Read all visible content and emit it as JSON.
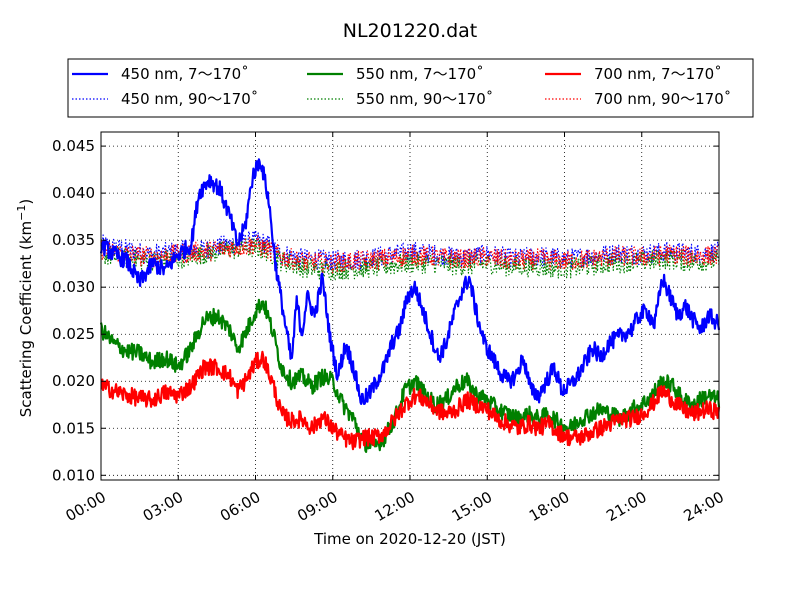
{
  "chart_data": {
    "type": "line",
    "title": "NL201220.dat",
    "xlabel": "Time on 2020-12-20 (JST)",
    "ylabel": "Scattering Coefficient (km",
    "ylabel_sup": "−1",
    "ylabel_close": ")",
    "xlim": [
      0,
      24
    ],
    "ylim": [
      0.0095,
      0.0465
    ],
    "x_ticks": [
      0,
      3,
      6,
      9,
      12,
      15,
      18,
      21,
      24
    ],
    "x_tick_labels": [
      "00:00",
      "03:00",
      "06:00",
      "09:00",
      "12:00",
      "15:00",
      "18:00",
      "21:00",
      "24:00"
    ],
    "y_ticks": [
      0.01,
      0.015,
      0.02,
      0.025,
      0.03,
      0.035,
      0.04,
      0.045
    ],
    "y_tick_labels": [
      "0.010",
      "0.015",
      "0.020",
      "0.025",
      "0.030",
      "0.035",
      "0.040",
      "0.045"
    ],
    "grid": true,
    "legend_position": "top",
    "x_unit": "hours",
    "series": [
      {
        "name": "450 nm, 7～170˚",
        "color": "#0000ff",
        "style": "solid",
        "x": [
          0,
          0.5,
          1,
          1.5,
          2,
          2.5,
          3,
          3.5,
          3.8,
          4.2,
          4.6,
          5,
          5.3,
          5.6,
          5.9,
          6.2,
          6.5,
          6.8,
          7.1,
          7.4,
          7.6,
          7.8,
          8.0,
          8.3,
          8.6,
          8.9,
          9.2,
          9.5,
          9.8,
          10.1,
          10.4,
          10.7,
          11.0,
          11.3,
          11.6,
          11.9,
          12.2,
          12.5,
          12.8,
          13.1,
          13.4,
          13.7,
          14.0,
          14.3,
          14.6,
          14.9,
          15.2,
          15.5,
          15.8,
          16.1,
          16.4,
          16.7,
          17.0,
          17.3,
          17.6,
          17.9,
          18.2,
          18.5,
          18.8,
          19.1,
          19.4,
          19.7,
          20.0,
          20.3,
          20.6,
          20.9,
          21.2,
          21.5,
          21.8,
          22.1,
          22.4,
          22.7,
          23.0,
          23.3,
          23.6,
          24.0
        ],
        "values": [
          0.0345,
          0.0335,
          0.0328,
          0.0305,
          0.0325,
          0.0318,
          0.0335,
          0.0345,
          0.04,
          0.0415,
          0.0405,
          0.0375,
          0.0345,
          0.0365,
          0.042,
          0.0435,
          0.0395,
          0.032,
          0.027,
          0.022,
          0.0285,
          0.025,
          0.029,
          0.027,
          0.031,
          0.0245,
          0.0205,
          0.024,
          0.0215,
          0.018,
          0.0185,
          0.02,
          0.0215,
          0.024,
          0.0255,
          0.029,
          0.03,
          0.0275,
          0.025,
          0.0225,
          0.024,
          0.027,
          0.0295,
          0.031,
          0.027,
          0.024,
          0.0225,
          0.021,
          0.02,
          0.0205,
          0.0225,
          0.019,
          0.0185,
          0.02,
          0.0215,
          0.019,
          0.0195,
          0.0205,
          0.022,
          0.0235,
          0.0225,
          0.024,
          0.0245,
          0.025,
          0.0255,
          0.027,
          0.0275,
          0.026,
          0.031,
          0.029,
          0.027,
          0.028,
          0.0265,
          0.0255,
          0.027,
          0.026
        ]
      },
      {
        "name": "450 nm, 90～170˚",
        "color": "#0000ff",
        "style": "dotted",
        "x": [
          0,
          1,
          2,
          3,
          4,
          5,
          6,
          6.5,
          7,
          8,
          9,
          10,
          11,
          12,
          13,
          14,
          15,
          16,
          17,
          18,
          19,
          20,
          21,
          22,
          23,
          24
        ],
        "values": [
          0.0345,
          0.034,
          0.0335,
          0.0338,
          0.034,
          0.0345,
          0.035,
          0.0345,
          0.0335,
          0.033,
          0.0328,
          0.033,
          0.0333,
          0.0338,
          0.0335,
          0.0332,
          0.0335,
          0.033,
          0.0333,
          0.033,
          0.0333,
          0.0336,
          0.0335,
          0.0338,
          0.0336,
          0.0337
        ]
      },
      {
        "name": "550 nm, 7～170˚",
        "color": "#008000",
        "style": "solid",
        "x": [
          0,
          0.5,
          1,
          1.5,
          2,
          2.5,
          3,
          3.5,
          4,
          4.5,
          5,
          5.3,
          5.6,
          6.0,
          6.3,
          6.7,
          7.0,
          7.4,
          7.8,
          8.2,
          8.6,
          9.0,
          9.4,
          9.8,
          10.2,
          10.6,
          11.0,
          11.4,
          11.8,
          12.2,
          12.6,
          13.0,
          13.4,
          13.8,
          14.2,
          14.6,
          15.0,
          15.4,
          15.8,
          16.2,
          16.6,
          17.0,
          17.4,
          17.8,
          18.2,
          18.6,
          19.0,
          19.4,
          19.8,
          20.2,
          20.6,
          21.0,
          21.4,
          21.8,
          22.2,
          22.6,
          23.0,
          23.5,
          24.0
        ],
        "values": [
          0.0255,
          0.024,
          0.0232,
          0.023,
          0.022,
          0.0225,
          0.0215,
          0.0235,
          0.0265,
          0.027,
          0.0255,
          0.0235,
          0.025,
          0.0275,
          0.0285,
          0.025,
          0.0215,
          0.02,
          0.0205,
          0.0195,
          0.0205,
          0.02,
          0.0175,
          0.016,
          0.0135,
          0.013,
          0.014,
          0.016,
          0.019,
          0.02,
          0.0185,
          0.0175,
          0.018,
          0.0195,
          0.02,
          0.0185,
          0.018,
          0.017,
          0.0165,
          0.016,
          0.0165,
          0.016,
          0.0165,
          0.0155,
          0.015,
          0.016,
          0.0165,
          0.017,
          0.0165,
          0.016,
          0.017,
          0.0175,
          0.0185,
          0.02,
          0.0195,
          0.018,
          0.0175,
          0.0185,
          0.018
        ]
      },
      {
        "name": "550 nm, 90～170˚",
        "color": "#008000",
        "style": "dotted",
        "x": [
          0,
          1,
          2,
          3,
          4,
          5,
          6,
          6.5,
          7,
          8,
          9,
          10,
          11,
          12,
          13,
          14,
          15,
          16,
          17,
          18,
          19,
          20,
          21,
          22,
          23,
          24
        ],
        "values": [
          0.0335,
          0.033,
          0.0328,
          0.033,
          0.0335,
          0.034,
          0.0342,
          0.0338,
          0.0328,
          0.032,
          0.0318,
          0.032,
          0.0322,
          0.0326,
          0.0325,
          0.0323,
          0.0325,
          0.0322,
          0.0322,
          0.032,
          0.0323,
          0.0326,
          0.0327,
          0.033,
          0.0327,
          0.0328
        ]
      },
      {
        "name": "700 nm, 7～170˚",
        "color": "#ff0000",
        "style": "solid",
        "x": [
          0,
          0.5,
          1,
          1.5,
          2,
          2.5,
          3,
          3.5,
          4,
          4.5,
          5,
          5.3,
          5.6,
          6.0,
          6.3,
          6.7,
          7.0,
          7.4,
          7.8,
          8.2,
          8.6,
          9.0,
          9.4,
          9.8,
          10.2,
          10.6,
          11.0,
          11.4,
          11.8,
          12.2,
          12.6,
          13.0,
          13.4,
          13.8,
          14.2,
          14.6,
          15.0,
          15.4,
          15.8,
          16.2,
          16.6,
          17.0,
          17.4,
          17.8,
          18.2,
          18.6,
          19.0,
          19.4,
          19.8,
          20.2,
          20.6,
          21.0,
          21.4,
          21.8,
          22.2,
          22.6,
          23.0,
          23.5,
          24.0
        ],
        "values": [
          0.0195,
          0.019,
          0.0185,
          0.0182,
          0.018,
          0.0188,
          0.0185,
          0.0195,
          0.0215,
          0.0215,
          0.0205,
          0.019,
          0.02,
          0.022,
          0.0225,
          0.0195,
          0.0165,
          0.0158,
          0.016,
          0.015,
          0.0162,
          0.015,
          0.014,
          0.0135,
          0.014,
          0.014,
          0.0145,
          0.016,
          0.0175,
          0.0185,
          0.018,
          0.017,
          0.0165,
          0.017,
          0.018,
          0.0175,
          0.017,
          0.016,
          0.0155,
          0.015,
          0.0155,
          0.015,
          0.0155,
          0.0145,
          0.014,
          0.014,
          0.0145,
          0.015,
          0.0155,
          0.016,
          0.016,
          0.0165,
          0.0175,
          0.019,
          0.018,
          0.017,
          0.0165,
          0.017,
          0.0168
        ]
      },
      {
        "name": "700 nm, 90～170˚",
        "color": "#ff0000",
        "style": "dotted",
        "x": [
          0,
          1,
          2,
          3,
          4,
          5,
          6,
          6.5,
          7,
          8,
          9,
          10,
          11,
          12,
          13,
          14,
          15,
          16,
          17,
          18,
          19,
          20,
          21,
          22,
          23,
          24
        ],
        "values": [
          0.034,
          0.0335,
          0.0332,
          0.0335,
          0.0338,
          0.0342,
          0.0345,
          0.034,
          0.0332,
          0.0327,
          0.0326,
          0.0328,
          0.033,
          0.0334,
          0.0332,
          0.033,
          0.0332,
          0.0328,
          0.033,
          0.0328,
          0.033,
          0.0333,
          0.0332,
          0.0335,
          0.0333,
          0.0334
        ]
      }
    ]
  }
}
